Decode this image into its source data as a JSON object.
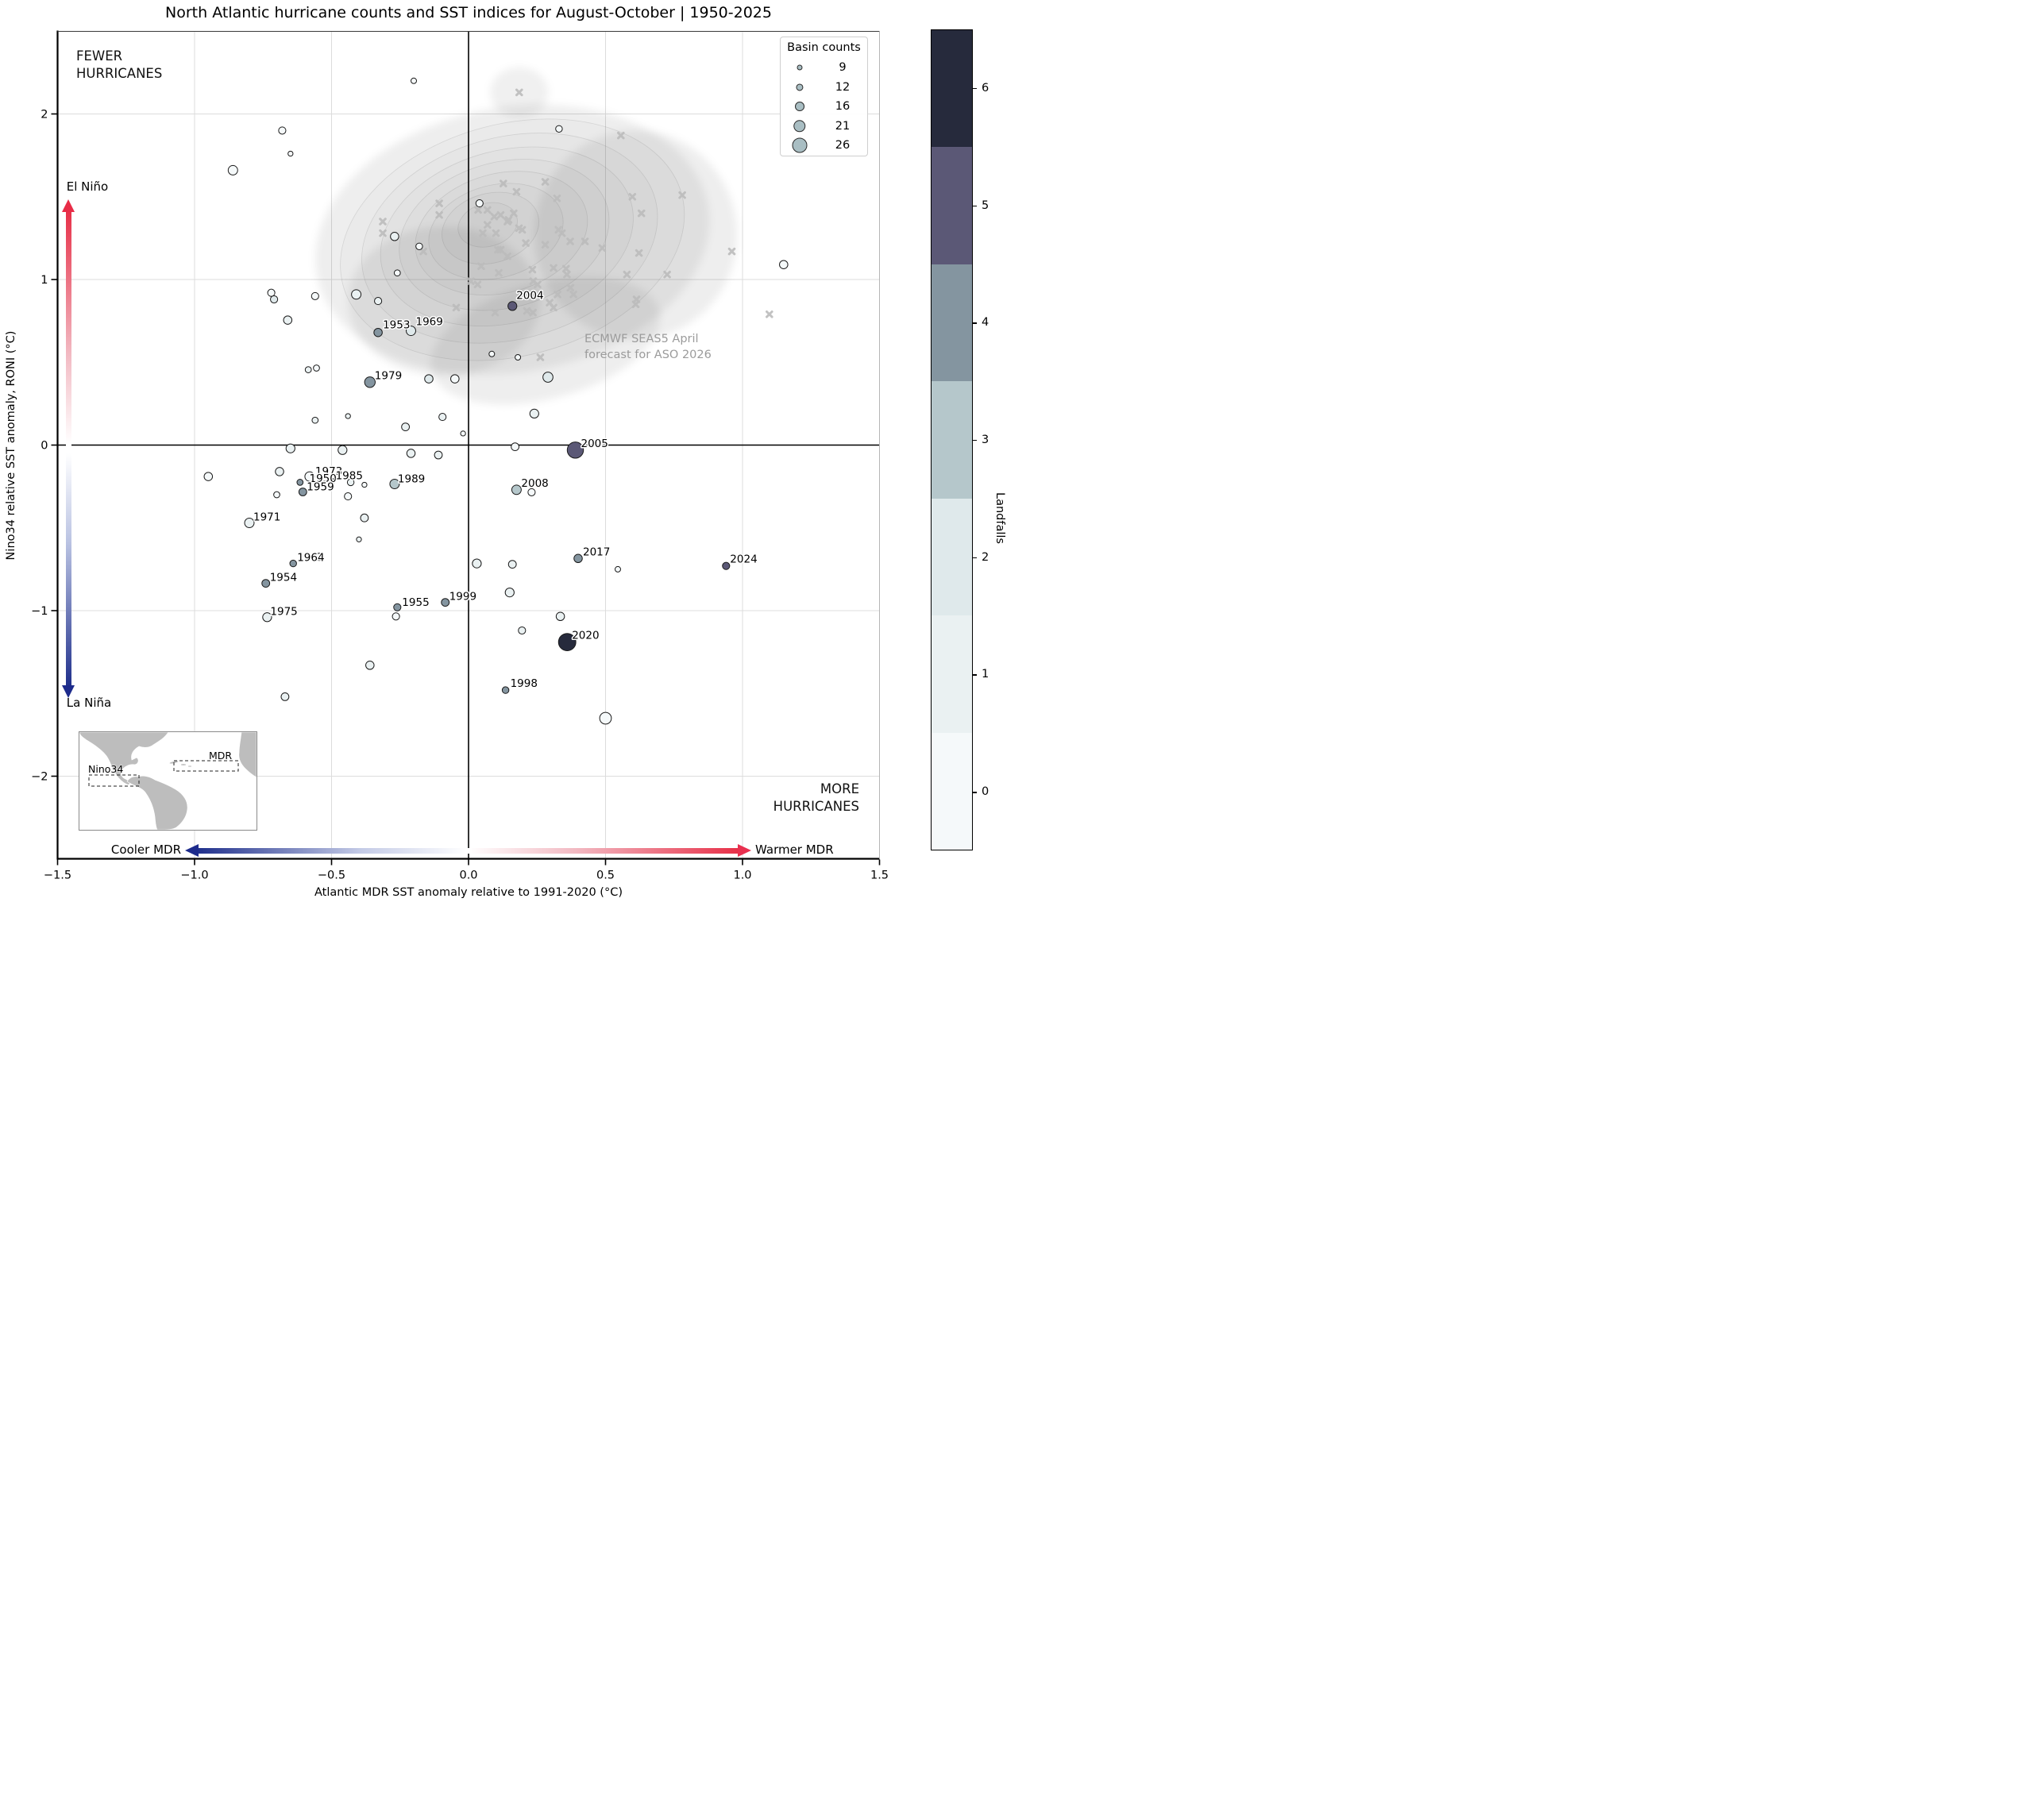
{
  "title": "North Atlantic hurricane counts and SST indices for August-October | 1950-2025",
  "axes": {
    "x_label": "Atlantic MDR SST anomaly relative to 1991-2020 (°C)",
    "y_label": "Nino34 relative SST anomaly, RONI  (°C)",
    "x_ticks": [
      {
        "v": -1.5,
        "label": "−1.5"
      },
      {
        "v": -1.0,
        "label": "−1.0"
      },
      {
        "v": -0.5,
        "label": "−0.5"
      },
      {
        "v": 0.0,
        "label": "0.0"
      },
      {
        "v": 0.5,
        "label": "0.5"
      },
      {
        "v": 1.0,
        "label": "1.0"
      },
      {
        "v": 1.5,
        "label": "1.5"
      }
    ],
    "y_ticks": [
      {
        "v": 2,
        "label": "2"
      },
      {
        "v": 1,
        "label": "1"
      },
      {
        "v": 0,
        "label": "0"
      },
      {
        "v": -1,
        "label": "−1"
      },
      {
        "v": -2,
        "label": "−2"
      }
    ]
  },
  "annotations": {
    "fewer": "FEWER\nHURRICANES",
    "more": "MORE\nHURRICANES",
    "el_nino": "El Niño",
    "la_nina": "La Niña",
    "cooler": "Cooler MDR",
    "warmer": "Warmer MDR",
    "forecast": "ECMWF SEAS5 April\nforecast for ASO 2026"
  },
  "legend": {
    "title": "Basin counts",
    "items": [
      {
        "count": 9
      },
      {
        "count": 12
      },
      {
        "count": 16
      },
      {
        "count": 21
      },
      {
        "count": 26
      }
    ]
  },
  "colorbar": {
    "label": "Landfalls",
    "ticks": [
      6,
      5,
      4,
      3,
      2,
      1,
      0
    ],
    "colors": [
      "#f5f9fa",
      "#eaf1f2",
      "#dfe9eb",
      "#b5c7cb",
      "#8495a0",
      "#5b5876",
      "#262a3c"
    ]
  },
  "inset": {
    "nino34": "Nino34",
    "mdr": "MDR"
  },
  "colors": {
    "el_nino_red": "#e8304f",
    "la_nina_blue": "#1e2f8e",
    "ensemble_gray": "#bcbcbc",
    "grid": "#dcdcdc",
    "legend_fill": "#a9bec3"
  },
  "chart_data": {
    "type": "scatter",
    "x_range": [
      -1.5,
      1.5
    ],
    "y_range": [
      -2.5,
      2.5
    ],
    "grid_x": [
      -1.0,
      -0.5,
      0.5,
      1.0
    ],
    "grid_y": [
      -2,
      -1,
      1,
      2
    ],
    "size_rule": "marker radius (full-res px) = 7 + 0.706 × (count − 9)",
    "points": [
      {
        "x": -0.2,
        "y": 2.2,
        "n": 9,
        "lf": 0
      },
      {
        "x": -0.68,
        "y": 1.9,
        "n": 12,
        "lf": 0
      },
      {
        "x": -0.65,
        "y": 1.76,
        "n": 8,
        "lf": 0
      },
      {
        "x": -0.86,
        "y": 1.66,
        "n": 16,
        "lf": 0
      },
      {
        "x": -0.27,
        "y": 1.26,
        "n": 14,
        "lf": 1
      },
      {
        "x": -0.18,
        "y": 1.2,
        "n": 11,
        "lf": 0
      },
      {
        "x": 0.33,
        "y": 1.91,
        "n": 11,
        "lf": 0
      },
      {
        "x": 0.04,
        "y": 1.46,
        "n": 12,
        "lf": 0
      },
      {
        "x": 1.15,
        "y": 1.09,
        "n": 14,
        "lf": 0
      },
      {
        "x": -0.72,
        "y": 0.92,
        "n": 12,
        "lf": 0
      },
      {
        "x": -0.71,
        "y": 0.88,
        "n": 12,
        "lf": 2
      },
      {
        "x": -0.56,
        "y": 0.9,
        "n": 12,
        "lf": 0
      },
      {
        "x": -0.41,
        "y": 0.91,
        "n": 16,
        "lf": 1
      },
      {
        "x": -0.33,
        "y": 0.87,
        "n": 12,
        "lf": 1
      },
      {
        "x": -0.26,
        "y": 1.04,
        "n": 10,
        "lf": 0
      },
      {
        "x": -0.66,
        "y": 0.755,
        "n": 14,
        "lf": 1
      },
      {
        "x": -0.33,
        "y": 0.68,
        "n": 14,
        "lf": 4,
        "year": "1953",
        "lx": 6,
        "ly": -16
      },
      {
        "x": -0.21,
        "y": 0.69,
        "n": 16,
        "lf": 2,
        "year": "1969",
        "lx": 6,
        "ly": -18
      },
      {
        "x": -0.585,
        "y": 0.455,
        "n": 10,
        "lf": 1
      },
      {
        "x": -0.555,
        "y": 0.465,
        "n": 10,
        "lf": 0
      },
      {
        "x": -0.36,
        "y": 0.38,
        "n": 18,
        "lf": 4,
        "year": "1979",
        "lx": 6,
        "ly": -15
      },
      {
        "x": -0.145,
        "y": 0.4,
        "n": 14,
        "lf": 2
      },
      {
        "x": -0.05,
        "y": 0.4,
        "n": 14,
        "lf": 0
      },
      {
        "x": -0.44,
        "y": 0.175,
        "n": 8,
        "lf": 1
      },
      {
        "x": -0.56,
        "y": 0.15,
        "n": 10,
        "lf": 1
      },
      {
        "x": -0.23,
        "y": 0.11,
        "n": 13,
        "lf": 1
      },
      {
        "x": -0.095,
        "y": 0.17,
        "n": 12,
        "lf": 1
      },
      {
        "x": -0.02,
        "y": 0.07,
        "n": 8,
        "lf": 0
      },
      {
        "x": 0.16,
        "y": 0.84,
        "n": 15,
        "lf": 5,
        "year": "2004",
        "lx": 5,
        "ly": -20
      },
      {
        "x": 0.085,
        "y": 0.55,
        "n": 9,
        "lf": 0
      },
      {
        "x": 0.18,
        "y": 0.53,
        "n": 9,
        "lf": 0
      },
      {
        "x": 0.29,
        "y": 0.41,
        "n": 17,
        "lf": 2
      },
      {
        "x": 0.24,
        "y": 0.19,
        "n": 15,
        "lf": 1
      },
      {
        "x": -0.65,
        "y": -0.02,
        "n": 15,
        "lf": 1
      },
      {
        "x": -0.46,
        "y": -0.03,
        "n": 15,
        "lf": 1
      },
      {
        "x": -0.21,
        "y": -0.05,
        "n": 14,
        "lf": 1
      },
      {
        "x": -0.11,
        "y": -0.06,
        "n": 13,
        "lf": 1
      },
      {
        "x": 0.17,
        "y": -0.01,
        "n": 13,
        "lf": 0
      },
      {
        "x": 0.39,
        "y": -0.03,
        "n": 28,
        "lf": 5,
        "year": "2005",
        "lx": 7,
        "ly": -15
      },
      {
        "x": -0.95,
        "y": -0.19,
        "n": 14,
        "lf": 0
      },
      {
        "x": -0.69,
        "y": -0.16,
        "n": 14,
        "lf": 1
      },
      {
        "x": -0.58,
        "y": -0.19,
        "n": 16,
        "lf": 0,
        "year": "1973",
        "lx": 7,
        "ly": -13
      },
      {
        "x": -0.5,
        "y": -0.218,
        "n": 10,
        "lf": 6,
        "year": "1950",
        "lx": -28,
        "ly": -10
      },
      {
        "x": -0.43,
        "y": -0.225,
        "n": 11,
        "lf": 1,
        "year": "1985",
        "lx": -19,
        "ly": -15
      },
      {
        "x": -0.615,
        "y": -0.225,
        "n": 10,
        "lf": 4
      },
      {
        "x": -0.605,
        "y": -0.283,
        "n": 13,
        "lf": 4,
        "year": "1959",
        "lx": 5,
        "ly": -13
      },
      {
        "x": -0.7,
        "y": -0.3,
        "n": 10,
        "lf": 0
      },
      {
        "x": -0.38,
        "y": -0.24,
        "n": 8,
        "lf": 0
      },
      {
        "x": -0.44,
        "y": -0.31,
        "n": 12,
        "lf": 0
      },
      {
        "x": -0.27,
        "y": -0.235,
        "n": 16,
        "lf": 3,
        "year": "1989",
        "lx": 4,
        "ly": -13
      },
      {
        "x": 0.175,
        "y": -0.27,
        "n": 16,
        "lf": 3,
        "year": "2008",
        "lx": 6,
        "ly": -15
      },
      {
        "x": 0.23,
        "y": -0.285,
        "n": 12,
        "lf": 0
      },
      {
        "x": -0.38,
        "y": -0.44,
        "n": 13,
        "lf": 1
      },
      {
        "x": -0.8,
        "y": -0.47,
        "n": 16,
        "lf": 1,
        "year": "1971",
        "lx": 5,
        "ly": -14
      },
      {
        "x": -0.4,
        "y": -0.57,
        "n": 8,
        "lf": 1
      },
      {
        "x": -0.64,
        "y": -0.715,
        "n": 11,
        "lf": 4,
        "year": "1964",
        "lx": 5,
        "ly": -14
      },
      {
        "x": -0.545,
        "y": -0.675,
        "n": 12,
        "lf": 0
      },
      {
        "x": -0.74,
        "y": -0.835,
        "n": 13,
        "lf": 4,
        "year": "1954",
        "lx": 5,
        "ly": -14
      },
      {
        "x": 0.03,
        "y": -0.715,
        "n": 15,
        "lf": 1
      },
      {
        "x": 0.16,
        "y": -0.72,
        "n": 13,
        "lf": 1
      },
      {
        "x": 0.4,
        "y": -0.685,
        "n": 14,
        "lf": 4,
        "year": "2017",
        "lx": 6,
        "ly": -15
      },
      {
        "x": 0.545,
        "y": -0.75,
        "n": 9,
        "lf": 0
      },
      {
        "x": 0.94,
        "y": -0.73,
        "n": 12,
        "lf": 5,
        "year": "2024",
        "lx": 5,
        "ly": -15
      },
      {
        "x": 0.15,
        "y": -0.89,
        "n": 15,
        "lf": 1
      },
      {
        "x": -0.085,
        "y": -0.95,
        "n": 13,
        "lf": 4,
        "year": "1999",
        "lx": 5,
        "ly": -14
      },
      {
        "x": -0.26,
        "y": -0.98,
        "n": 12,
        "lf": 4,
        "year": "1955",
        "lx": 6,
        "ly": -13
      },
      {
        "x": -0.265,
        "y": -1.035,
        "n": 12,
        "lf": 0
      },
      {
        "x": -0.735,
        "y": -1.04,
        "n": 15,
        "lf": 1,
        "year": "1975",
        "lx": 4,
        "ly": -14
      },
      {
        "x": 0.335,
        "y": -1.035,
        "n": 14,
        "lf": 1
      },
      {
        "x": 0.195,
        "y": -1.12,
        "n": 12,
        "lf": 1
      },
      {
        "x": 0.36,
        "y": -1.19,
        "n": 30,
        "lf": 6,
        "year": "2020",
        "lx": 6,
        "ly": -15
      },
      {
        "x": -0.36,
        "y": -1.33,
        "n": 14,
        "lf": 1
      },
      {
        "x": 0.135,
        "y": -1.48,
        "n": 11,
        "lf": 4,
        "year": "1998",
        "lx": 6,
        "ly": -15
      },
      {
        "x": -0.67,
        "y": -1.52,
        "n": 13,
        "lf": 1
      },
      {
        "x": 0.5,
        "y": -1.65,
        "n": 20,
        "lf": 0
      }
    ],
    "forecast_ensemble": [
      [
        0.185,
        2.13
      ],
      [
        0.556,
        1.87
      ],
      [
        0.78,
        1.51
      ],
      [
        0.598,
        1.5
      ],
      [
        0.127,
        1.58
      ],
      [
        0.28,
        1.59
      ],
      [
        0.175,
        1.53
      ],
      [
        0.323,
        1.49
      ],
      [
        0.069,
        1.42
      ],
      [
        0.035,
        1.42
      ],
      [
        0.165,
        1.4
      ],
      [
        0.094,
        1.38
      ],
      [
        0.142,
        1.35
      ],
      [
        0.069,
        1.33
      ],
      [
        0.052,
        1.28
      ],
      [
        0.1,
        1.28
      ],
      [
        0.196,
        1.3
      ],
      [
        0.328,
        1.3
      ],
      [
        0.341,
        1.28
      ],
      [
        0.631,
        1.4
      ],
      [
        -0.107,
        1.46
      ],
      [
        -0.107,
        1.39
      ],
      [
        -0.313,
        1.35
      ],
      [
        -0.313,
        1.28
      ],
      [
        -0.165,
        1.17
      ],
      [
        0.209,
        1.22
      ],
      [
        0.28,
        1.21
      ],
      [
        0.371,
        1.23
      ],
      [
        0.425,
        1.23
      ],
      [
        0.488,
        1.19
      ],
      [
        0.107,
        1.18
      ],
      [
        0.117,
        1.39
      ],
      [
        0.146,
        1.36
      ],
      [
        0.184,
        1.31
      ],
      [
        0.117,
        1.18
      ],
      [
        0.142,
        1.14
      ],
      [
        0.622,
        1.16
      ],
      [
        0.961,
        1.17
      ],
      [
        0.046,
        1.08
      ],
      [
        0.11,
        1.04
      ],
      [
        0.31,
        1.07
      ],
      [
        0.356,
        1.065
      ],
      [
        0.359,
        1.03
      ],
      [
        0.578,
        1.03
      ],
      [
        0.725,
        1.03
      ],
      [
        0.233,
        1.06
      ],
      [
        0.236,
        0.99
      ],
      [
        0.252,
        0.97
      ],
      [
        0.008,
        0.99
      ],
      [
        0.033,
        0.97
      ],
      [
        -0.045,
        0.83
      ],
      [
        0.213,
        0.81
      ],
      [
        0.235,
        0.8
      ],
      [
        0.097,
        0.8
      ],
      [
        0.372,
        0.95
      ],
      [
        0.325,
        0.91
      ],
      [
        0.383,
        0.91
      ],
      [
        0.296,
        0.86
      ],
      [
        0.31,
        0.83
      ],
      [
        0.613,
        0.88
      ],
      [
        0.61,
        0.85
      ],
      [
        1.098,
        0.79
      ],
      [
        0.262,
        0.53
      ]
    ],
    "kde": {
      "center": [
        0.16,
        1.25
      ],
      "detached_blob": {
        "cx": 0.185,
        "cy": 2.13,
        "rx": 0.106,
        "ry": 0.151
      },
      "outer_lobes": [
        {
          "cx": 0.16,
          "cy": 1.24,
          "rx": 0.725,
          "ry": 0.8,
          "rot": -10
        },
        {
          "cx": 0.61,
          "cy": 1.27,
          "rx": 0.37,
          "ry": 0.63,
          "rot": 0
        },
        {
          "cx": 0.28,
          "cy": 0.63,
          "rx": 0.43,
          "ry": 0.35,
          "rot": -15
        },
        {
          "cx": -0.09,
          "cy": 0.87,
          "rx": 0.35,
          "ry": 0.45,
          "rot": 0
        }
      ],
      "levels": [
        {
          "cx": 0.16,
          "cy": 1.24,
          "rx": 0.64,
          "ry": 0.7
        },
        {
          "cx": 0.15,
          "cy": 1.25,
          "rx": 0.55,
          "ry": 0.61
        },
        {
          "cx": 0.14,
          "cy": 1.26,
          "rx": 0.47,
          "ry": 0.52
        },
        {
          "cx": 0.13,
          "cy": 1.27,
          "rx": 0.39,
          "ry": 0.44
        },
        {
          "cx": 0.12,
          "cy": 1.28,
          "rx": 0.32,
          "ry": 0.36
        },
        {
          "cx": 0.1,
          "cy": 1.29,
          "rx": 0.25,
          "ry": 0.28
        },
        {
          "cx": 0.08,
          "cy": 1.31,
          "rx": 0.18,
          "ry": 0.21
        },
        {
          "cx": 0.07,
          "cy": 1.33,
          "rx": 0.11,
          "ry": 0.13
        }
      ]
    }
  }
}
